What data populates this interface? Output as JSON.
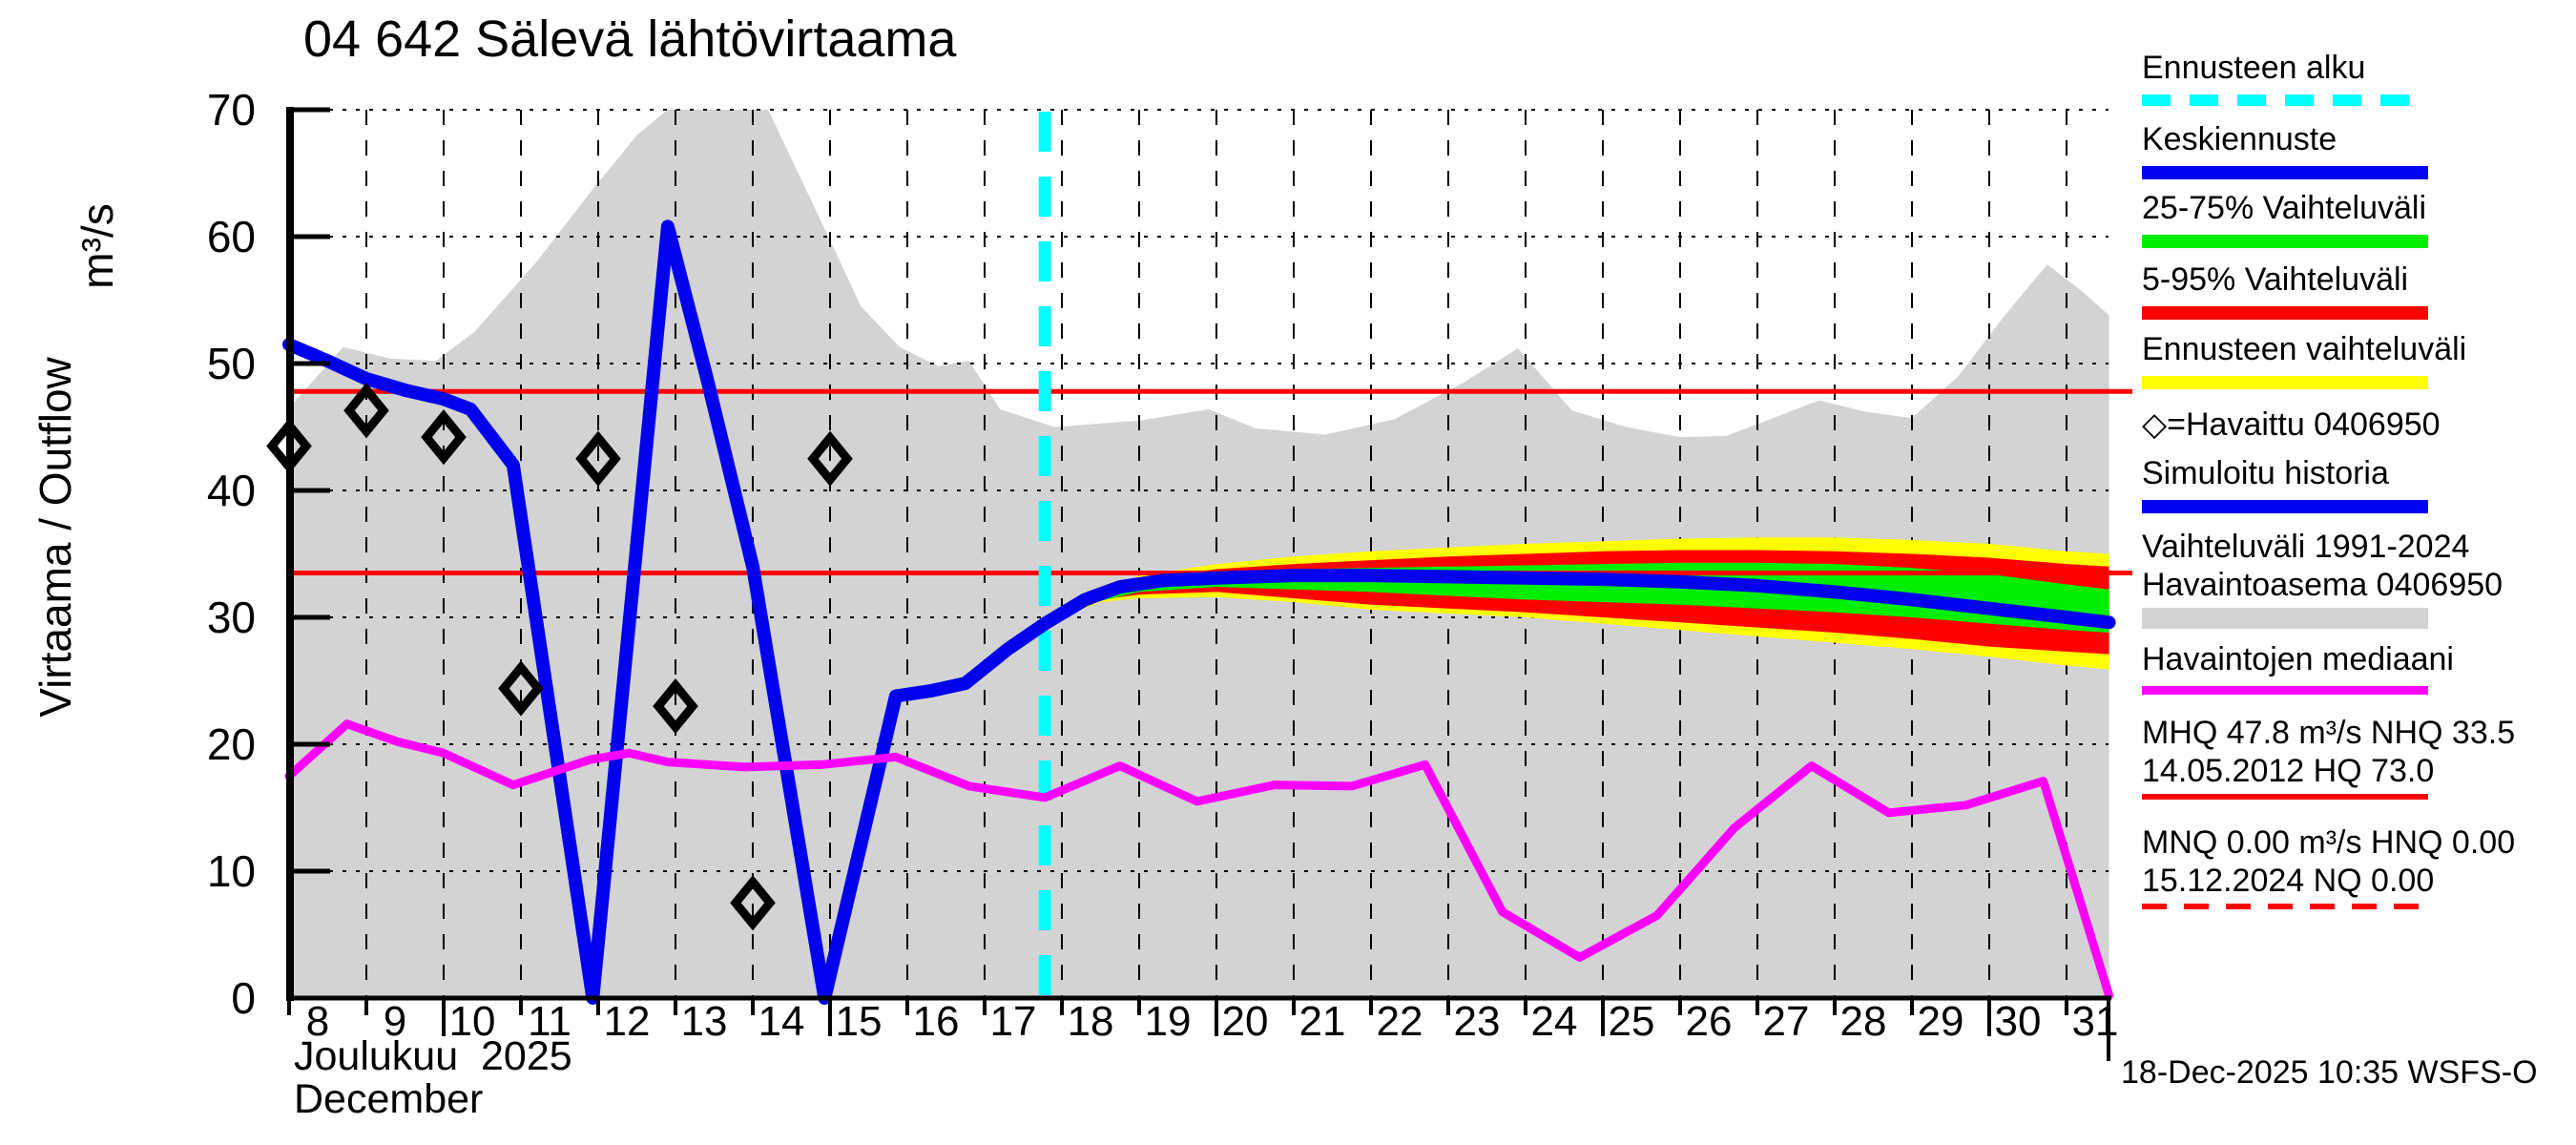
{
  "title": "04 642 Sälevä lähtövirtaama",
  "y_axis": {
    "label": "Virtaama / Outflow",
    "unit": "m³/s"
  },
  "x_axis": {
    "month_fi": "Joulukuu  2025",
    "month_en": "December"
  },
  "footer": {
    "timestamp": "18-Dec-2025 10:35 WSFS-O"
  },
  "legend": {
    "items": [
      {
        "label": "Ennusteen alku",
        "swatch": "dash",
        "color": "#00ffff"
      },
      {
        "label": "Keskiennuste",
        "swatch": "line",
        "color": "#0000ee"
      },
      {
        "label": "25-75% Vaihteluväli",
        "swatch": "line",
        "color": "#00ee00"
      },
      {
        "label": "5-95% Vaihteluväli",
        "swatch": "line",
        "color": "#ff0000"
      },
      {
        "label": "Ennusteen vaihteluväli",
        "swatch": "line",
        "color": "#ffff00"
      },
      {
        "label": "◇=Havaittu 0406950",
        "swatch": "none",
        "color": null
      },
      {
        "label": "Simuloitu historia",
        "swatch": "line",
        "color": "#0000ee"
      },
      {
        "label": "Vaihteluväli 1991-2024",
        "label2": "Havaintoasema 0406950",
        "swatch": "bar",
        "color": "#d3d3d3"
      },
      {
        "label": "Havaintojen mediaani",
        "swatch": "line",
        "color": "#ff00ff"
      },
      {
        "label": "MHQ 47.8 m³/s NHQ 33.5",
        "label2": "14.05.2012 HQ 73.0",
        "swatch": "line",
        "color": "#ff0000"
      },
      {
        "label": "MNQ 0.00 m³/s HNQ 0.00",
        "label2": "15.12.2024 NQ 0.00",
        "swatch": "dash",
        "color": "#ff0000"
      }
    ]
  },
  "chart_data": {
    "type": "line",
    "title": "04 642 Sälevä lähtövirtaama",
    "xlabel": "Joulukuu 2025 / December",
    "ylabel": "Virtaama / Outflow (m³/s)",
    "x_range": [
      8,
      31.55
    ],
    "y_range": [
      0,
      70
    ],
    "y_ticks": [
      0,
      10,
      20,
      30,
      40,
      50,
      60,
      70
    ],
    "x_ticks": [
      8,
      9,
      10,
      11,
      12,
      13,
      14,
      15,
      16,
      17,
      18,
      19,
      20,
      21,
      22,
      23,
      24,
      25,
      26,
      27,
      28,
      29,
      30,
      31
    ],
    "x_major_ticks": [
      10,
      15,
      20,
      25,
      30
    ],
    "grid": true,
    "legend_position": "right",
    "forecast_start_x": 17.78,
    "forecast_start_color": "#00ffff",
    "reference_lines": [
      {
        "name": "MHQ",
        "value": 47.8,
        "color": "#ff0000",
        "style": "solid"
      },
      {
        "name": "NHQ",
        "value": 33.5,
        "color": "#ff0000",
        "style": "solid"
      }
    ],
    "history_range": {
      "name": "Vaihteluväli 1991-2024 Havaintoasema 0406950",
      "color": "#d3d3d3",
      "upper_points": [
        [
          8,
          46.5
        ],
        [
          8.7,
          51.3
        ],
        [
          9.3,
          50.4
        ],
        [
          9.9,
          50.2
        ],
        [
          10.4,
          52.5
        ],
        [
          11.2,
          58.0
        ],
        [
          11.9,
          63.5
        ],
        [
          12.5,
          68.0
        ],
        [
          12.9,
          70.0
        ],
        [
          14.2,
          70.0
        ],
        [
          14.9,
          61.0
        ],
        [
          15.4,
          54.5
        ],
        [
          15.9,
          51.3
        ],
        [
          16.4,
          49.8
        ],
        [
          16.8,
          50.2
        ],
        [
          17.2,
          46.4
        ],
        [
          17.9,
          45.0
        ],
        [
          19.0,
          45.5
        ],
        [
          19.9,
          46.4
        ],
        [
          20.5,
          44.9
        ],
        [
          21.4,
          44.4
        ],
        [
          22.3,
          45.6
        ],
        [
          23.2,
          48.5
        ],
        [
          23.9,
          51.2
        ],
        [
          24.6,
          46.3
        ],
        [
          25.3,
          45.0
        ],
        [
          26.0,
          44.2
        ],
        [
          26.6,
          44.3
        ],
        [
          27.2,
          45.7
        ],
        [
          27.8,
          47.1
        ],
        [
          28.4,
          46.2
        ],
        [
          29.0,
          45.7
        ],
        [
          29.6,
          49.0
        ],
        [
          30.2,
          53.8
        ],
        [
          30.75,
          57.8
        ],
        [
          31.2,
          55.7
        ],
        [
          31.55,
          53.8
        ]
      ]
    },
    "bands": {
      "x": [
        17.78,
        18.5,
        19,
        20,
        21,
        22,
        23,
        24,
        25,
        26,
        27,
        28,
        29,
        30,
        31,
        31.55
      ],
      "items": [
        {
          "name": "Ennusteen vaihteluväli",
          "color": "#ffff00",
          "upper": [
            29.5,
            31.8,
            33.3,
            34.2,
            34.8,
            35.2,
            35.5,
            35.8,
            36.0,
            36.2,
            36.3,
            36.3,
            36.1,
            35.8,
            35.2,
            35.0
          ],
          "lower": [
            29.5,
            31.2,
            31.5,
            31.6,
            31.2,
            30.6,
            30.3,
            30.0,
            29.5,
            29.0,
            28.5,
            28.0,
            27.5,
            26.9,
            26.2,
            25.9
          ]
        },
        {
          "name": "5-95% Vaihteluväli",
          "color": "#ff0000",
          "upper": [
            29.5,
            31.7,
            33.0,
            33.8,
            34.2,
            34.5,
            34.8,
            35.0,
            35.2,
            35.3,
            35.3,
            35.2,
            35.0,
            34.7,
            34.2,
            34.0
          ],
          "lower": [
            29.5,
            31.4,
            31.8,
            32.0,
            31.5,
            31.0,
            30.7,
            30.4,
            30.0,
            29.6,
            29.2,
            28.8,
            28.3,
            27.7,
            27.3,
            27.1
          ]
        },
        {
          "name": "25-75% Vaihteluväli",
          "color": "#00ee00",
          "upper": [
            29.5,
            31.6,
            32.8,
            33.5,
            33.8,
            33.9,
            34.0,
            34.1,
            34.2,
            34.3,
            34.3,
            34.2,
            33.9,
            33.4,
            32.6,
            32.2
          ],
          "lower": [
            29.5,
            31.3,
            32.0,
            32.4,
            32.2,
            32.0,
            31.7,
            31.4,
            31.2,
            31.0,
            30.7,
            30.4,
            30.0,
            29.5,
            29.0,
            28.8
          ]
        }
      ]
    },
    "lines": [
      {
        "name": "Simuloitu historia",
        "color": "#0000ee",
        "width": 14,
        "points": [
          [
            8,
            51.5
          ],
          [
            8.5,
            50.2
          ],
          [
            9,
            48.8
          ],
          [
            9.5,
            47.9
          ],
          [
            10,
            47.2
          ],
          [
            10.35,
            46.4
          ],
          [
            10.9,
            42.0
          ],
          [
            11.93,
            0
          ],
          [
            12.9,
            60.8
          ],
          [
            13.4,
            49.0
          ],
          [
            14.0,
            34.0
          ],
          [
            14.93,
            0
          ],
          [
            15.85,
            23.8
          ],
          [
            16.3,
            24.2
          ],
          [
            16.75,
            24.8
          ],
          [
            17.3,
            27.5
          ],
          [
            17.78,
            29.5
          ]
        ]
      },
      {
        "name": "Keskiennuste",
        "color": "#0000ee",
        "width": 14,
        "points": [
          [
            17.78,
            29.5
          ],
          [
            18.3,
            31.4
          ],
          [
            18.75,
            32.4
          ],
          [
            19.3,
            32.9
          ],
          [
            20,
            33.1
          ],
          [
            21,
            33.3
          ],
          [
            22,
            33.3
          ],
          [
            23,
            33.2
          ],
          [
            24,
            33.1
          ],
          [
            25,
            33.0
          ],
          [
            26,
            32.8
          ],
          [
            27,
            32.5
          ],
          [
            28,
            32.0
          ],
          [
            29,
            31.4
          ],
          [
            30,
            30.7
          ],
          [
            31,
            30.0
          ],
          [
            31.55,
            29.6
          ]
        ]
      },
      {
        "name": "Havaintojen mediaani",
        "color": "#ff00ff",
        "width": 9,
        "points": [
          [
            8,
            17.5
          ],
          [
            8.75,
            21.6
          ],
          [
            9.4,
            20.2
          ],
          [
            10.0,
            19.3
          ],
          [
            10.9,
            16.8
          ],
          [
            11.9,
            18.8
          ],
          [
            12.4,
            19.3
          ],
          [
            12.9,
            18.6
          ],
          [
            13.9,
            18.2
          ],
          [
            14.9,
            18.4
          ],
          [
            15.85,
            19.0
          ],
          [
            16.8,
            16.7
          ],
          [
            17.78,
            15.8
          ],
          [
            18.75,
            18.3
          ],
          [
            19.75,
            15.5
          ],
          [
            20.75,
            16.8
          ],
          [
            21.75,
            16.7
          ],
          [
            22.7,
            18.4
          ],
          [
            23.7,
            6.8
          ],
          [
            24.7,
            3.2
          ],
          [
            25.7,
            6.5
          ],
          [
            26.7,
            13.4
          ],
          [
            27.7,
            18.3
          ],
          [
            28.7,
            14.6
          ],
          [
            29.7,
            15.2
          ],
          [
            30.7,
            17.1
          ],
          [
            31.55,
            0.2
          ]
        ]
      }
    ],
    "observations": {
      "name": "Havaittu 0406950",
      "marker": "diamond",
      "color": "#000000",
      "points": [
        [
          8,
          43.5
        ],
        [
          9,
          46.3
        ],
        [
          10,
          44.2
        ],
        [
          11,
          24.4
        ],
        [
          12,
          42.5
        ],
        [
          13,
          23.0
        ],
        [
          14,
          7.5
        ],
        [
          15,
          42.5
        ]
      ]
    }
  }
}
